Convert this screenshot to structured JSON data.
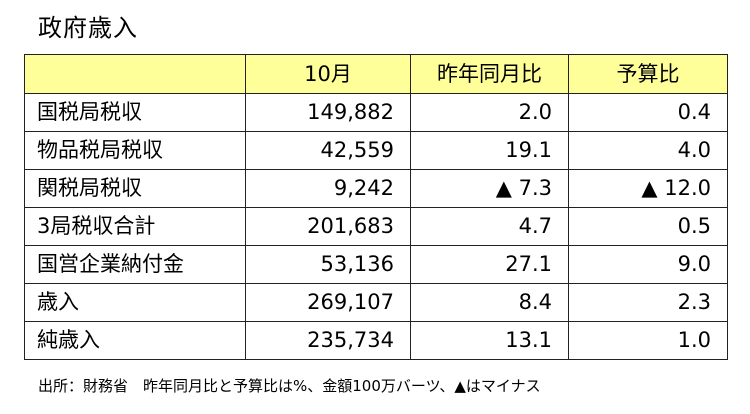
{
  "title": "政府歳入",
  "table": {
    "headers": [
      "",
      "10月",
      "昨年同月比",
      "予算比"
    ],
    "rows": [
      {
        "label": "国税局税収",
        "month": "149,882",
        "yoy": "2.0",
        "budget": "0.4"
      },
      {
        "label": "物品税局税収",
        "month": "42,559",
        "yoy": "19.1",
        "budget": "4.0"
      },
      {
        "label": "関税局税収",
        "month": "9,242",
        "yoy": "▲ 7.3",
        "budget": "▲ 12.0"
      },
      {
        "label": "3局税収合計",
        "month": "201,683",
        "yoy": "4.7",
        "budget": "0.5"
      },
      {
        "label": "国営企業納付金",
        "month": "53,136",
        "yoy": "27.1",
        "budget": "9.0"
      },
      {
        "label": "歳入",
        "month": "269,107",
        "yoy": "8.4",
        "budget": "2.3"
      },
      {
        "label": "純歳入",
        "month": "235,734",
        "yoy": "13.1",
        "budget": "1.0"
      }
    ]
  },
  "footnote": "出所：財務省　昨年同月比と予算比は%、金額100万バーツ、▲はマイナス",
  "colors": {
    "header_bg": "#ffff99",
    "border": "#222222"
  }
}
